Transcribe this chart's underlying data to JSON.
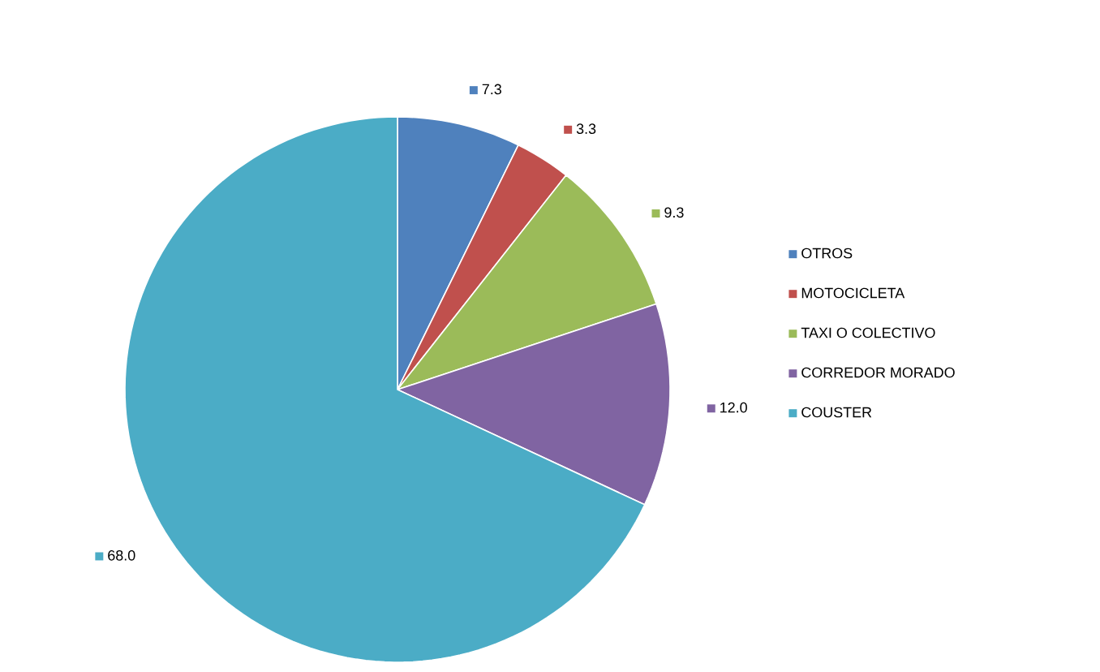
{
  "chart_data": {
    "type": "pie",
    "categories": [
      "OTROS",
      "MOTOCICLETA",
      "TAXI O COLECTIVO",
      "CORREDOR MORADO",
      "COUSTER"
    ],
    "values": [
      7.3,
      3.3,
      9.3,
      12.0,
      68.0
    ],
    "value_labels": [
      "7.3",
      "3.3",
      "9.3",
      "12.0",
      "68.0"
    ],
    "colors": [
      "#4f81bd",
      "#c0504d",
      "#9bbb59",
      "#8064a2",
      "#4bacc6"
    ],
    "legend": "right"
  }
}
